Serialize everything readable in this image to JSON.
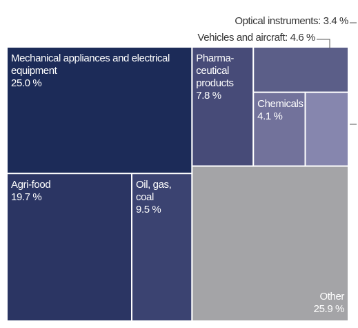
{
  "chart_data": {
    "type": "treemap",
    "categories": [
      "Mechanical appliances and electrical equipment",
      "Agri-food",
      "Oil, gas, coal",
      "Pharma-ceutical products",
      "Chemicals",
      "Vehicles and aircraft",
      "Optical instruments",
      "Other"
    ],
    "values": [
      25.0,
      19.7,
      9.5,
      7.8,
      4.1,
      4.6,
      3.4,
      25.9
    ],
    "value_labels": [
      "25.0 %",
      "19.7 %",
      "9.5 %",
      "7.8 %",
      "4.1 %",
      null,
      null,
      "25.9 %"
    ],
    "colors": [
      "#1c2b58",
      "#2b3563",
      "#3b4371",
      "#474b78",
      "#72729b",
      "#5b5e88",
      "#8686ae",
      "#a4a4a7"
    ],
    "annotations": [
      "Optical instruments: 3.4 %",
      "Vehicles and aircraft: 4.6 %"
    ]
  }
}
